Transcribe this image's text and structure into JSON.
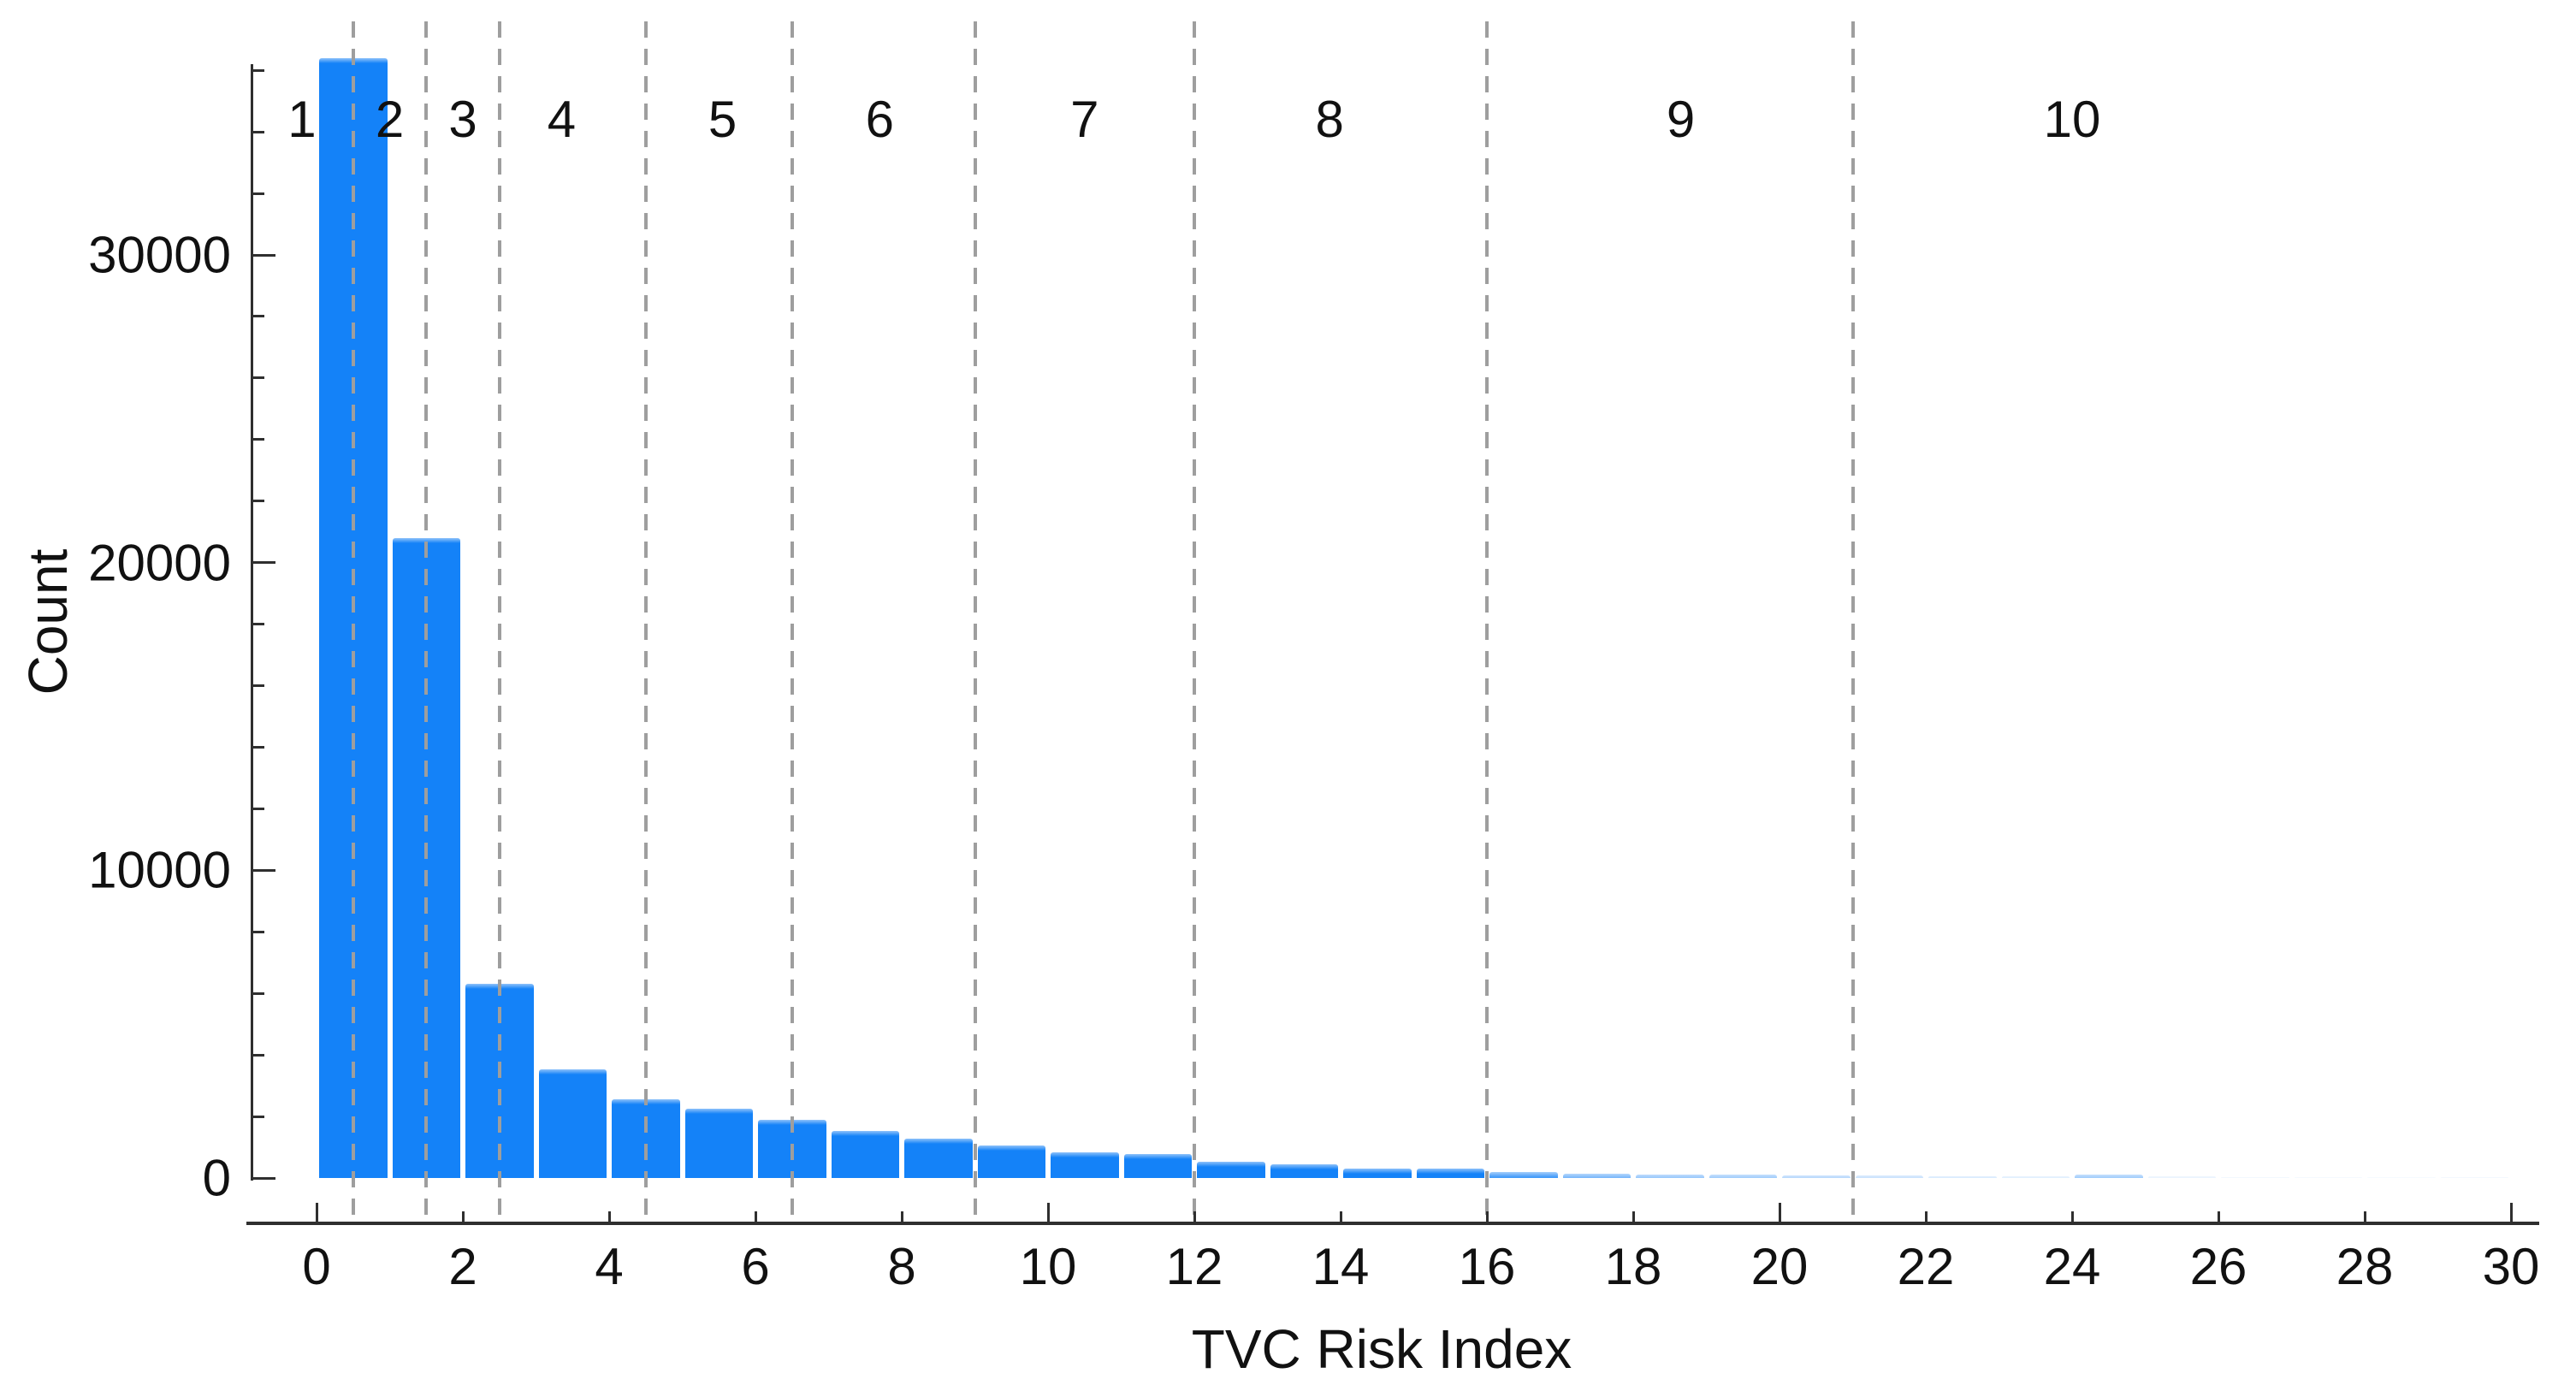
{
  "chart_data": {
    "type": "bar",
    "variant": "histogram",
    "title": "",
    "xlabel": "TVC Risk Index",
    "ylabel": "Count",
    "bin_width": 1,
    "bin_starts": [
      0,
      1,
      2,
      3,
      4,
      5,
      6,
      7,
      8,
      9,
      10,
      11,
      12,
      13,
      14,
      15,
      16,
      17,
      18,
      19,
      20,
      21,
      22,
      23,
      24,
      25,
      26,
      27,
      28,
      29
    ],
    "counts": [
      36400,
      20800,
      6300,
      3530,
      2560,
      2250,
      1900,
      1530,
      1280,
      1060,
      830,
      765,
      540,
      445,
      310,
      305,
      195,
      140,
      110,
      105,
      95,
      80,
      65,
      55,
      110,
      45,
      40,
      35,
      30,
      28
    ],
    "bar_opacities": [
      1,
      1,
      1,
      1,
      1,
      1,
      1,
      1,
      1,
      1,
      1,
      1,
      1,
      1,
      1,
      1,
      0.8,
      0.65,
      0.55,
      0.5,
      0.42,
      0.32,
      0.25,
      0.2,
      0.5,
      0.14,
      0.11,
      0.09,
      0.07,
      0.1
    ],
    "bar_color": "#1482f8",
    "bar_edge_color": "#8fc2fa",
    "xlim": [
      -0.95,
      30.4
    ],
    "ylim": [
      0,
      36500
    ],
    "grid": false,
    "x_tick_values": [
      0,
      2,
      4,
      6,
      8,
      10,
      12,
      14,
      16,
      18,
      20,
      22,
      24,
      26,
      28,
      30
    ],
    "x_tick_labels": [
      "0",
      "2",
      "4",
      "6",
      "8",
      "10",
      "12",
      "14",
      "16",
      "18",
      "20",
      "22",
      "24",
      "26",
      "28",
      "30"
    ],
    "x_major_tick_values": [
      0,
      10,
      20,
      30
    ],
    "y_tick_values": [
      0,
      10000,
      20000,
      30000
    ],
    "y_tick_labels": [
      "0",
      "10000",
      "20000",
      "30000"
    ],
    "y_minor_tick_step": 2000,
    "y_minor_tick_max": 36000,
    "decile_boundaries": [
      0.5,
      1.5,
      2.5,
      4.5,
      6.5,
      9,
      12,
      16,
      21
    ],
    "decile_line_color": "#9e9e9e",
    "decile_labels": [
      {
        "label": "1",
        "x": -0.2
      },
      {
        "label": "2",
        "x": 1.0
      },
      {
        "label": "3",
        "x": 2.0
      },
      {
        "label": "4",
        "x": 3.35
      },
      {
        "label": "5",
        "x": 5.55
      },
      {
        "label": "6",
        "x": 7.7
      },
      {
        "label": "7",
        "x": 10.5
      },
      {
        "label": "8",
        "x": 13.85
      },
      {
        "label": "9",
        "x": 18.65
      },
      {
        "label": "10",
        "x": 24.0
      }
    ],
    "axis_color": "#2f2f2f",
    "text_color": "#111111"
  }
}
